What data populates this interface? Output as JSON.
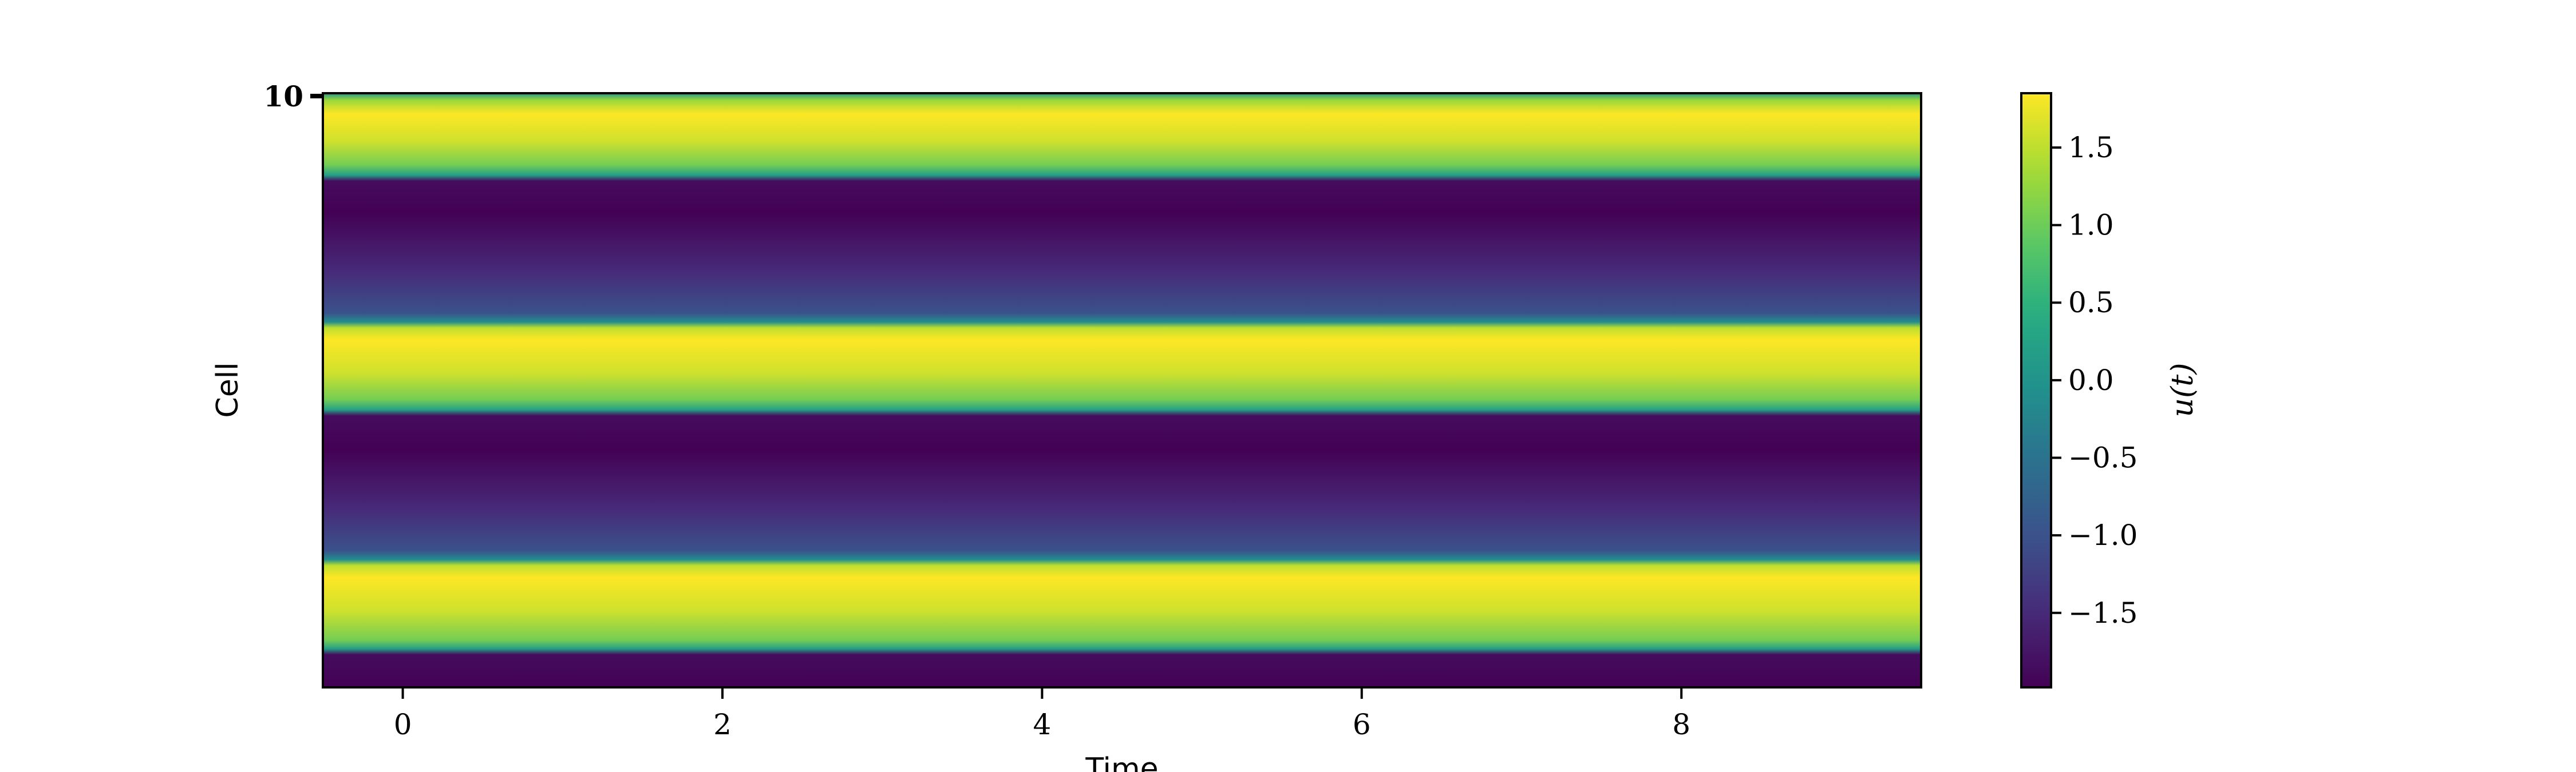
{
  "chart_data": {
    "type": "heatmap",
    "title": "",
    "xlabel": "Time",
    "ylabel": "Cell",
    "x_ticks": [
      0,
      2,
      4,
      6,
      8
    ],
    "xlim": [
      -0.5,
      9.5
    ],
    "y_tick_label_overlap": "10",
    "colormap": "viridis",
    "colorbar": {
      "label": "u(t)",
      "range": [
        -1.98,
        1.85
      ],
      "ticks": [
        1.5,
        1.0,
        0.5,
        0.0,
        -0.5,
        -1.0,
        -1.5
      ],
      "tick_labels": [
        "1.5",
        "1.0",
        "0.5",
        "0.0",
        "−0.5",
        "−1.0",
        "−1.5"
      ]
    },
    "profile_note": "value is constant along time; varies along the vertical cell axis (top to bottom fraction)",
    "profile": [
      {
        "pos": 0.0,
        "value": 0.05
      },
      {
        "pos": 0.012,
        "value": 1.3
      },
      {
        "pos": 0.035,
        "value": 1.85
      },
      {
        "pos": 0.08,
        "value": 1.6
      },
      {
        "pos": 0.12,
        "value": 1.05
      },
      {
        "pos": 0.138,
        "value": 0.2
      },
      {
        "pos": 0.148,
        "value": -1.85
      },
      {
        "pos": 0.2,
        "value": -1.98
      },
      {
        "pos": 0.3,
        "value": -1.5
      },
      {
        "pos": 0.37,
        "value": -1.0
      },
      {
        "pos": 0.385,
        "value": -0.1
      },
      {
        "pos": 0.395,
        "value": 1.5
      },
      {
        "pos": 0.415,
        "value": 1.85
      },
      {
        "pos": 0.47,
        "value": 1.6
      },
      {
        "pos": 0.515,
        "value": 1.05
      },
      {
        "pos": 0.533,
        "value": 0.2
      },
      {
        "pos": 0.543,
        "value": -1.85
      },
      {
        "pos": 0.6,
        "value": -1.98
      },
      {
        "pos": 0.7,
        "value": -1.5
      },
      {
        "pos": 0.77,
        "value": -1.0
      },
      {
        "pos": 0.785,
        "value": -0.1
      },
      {
        "pos": 0.795,
        "value": 1.5
      },
      {
        "pos": 0.815,
        "value": 1.85
      },
      {
        "pos": 0.87,
        "value": 1.6
      },
      {
        "pos": 0.92,
        "value": 1.05
      },
      {
        "pos": 0.935,
        "value": 0.2
      },
      {
        "pos": 0.945,
        "value": -1.85
      },
      {
        "pos": 1.0,
        "value": -1.98
      }
    ]
  }
}
